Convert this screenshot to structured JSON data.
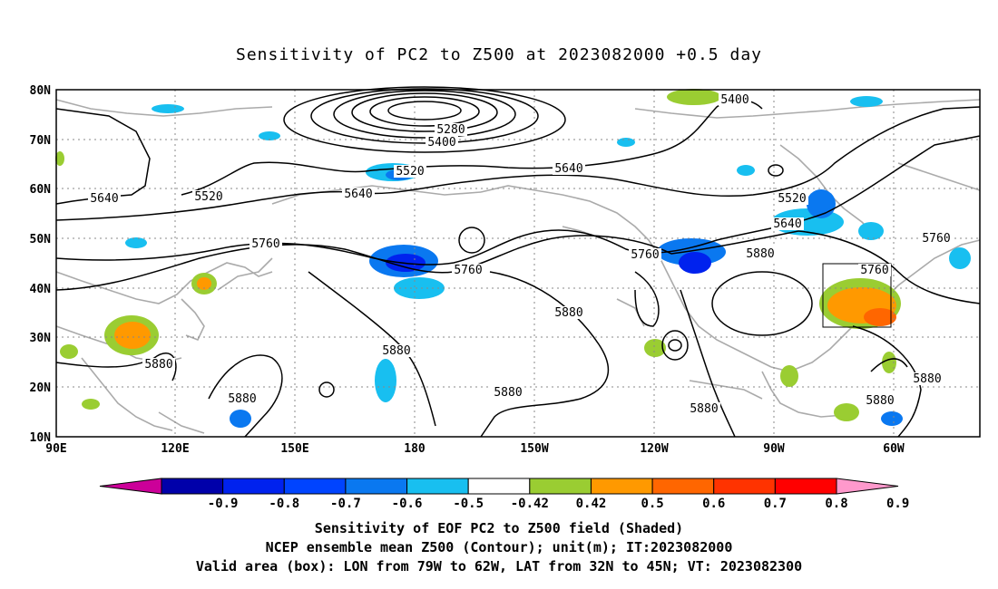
{
  "title": "Sensitivity of PC2 to Z500 at 2023082000 +0.5 day",
  "map": {
    "lat_labels": [
      "80N",
      "70N",
      "60N",
      "50N",
      "40N",
      "30N",
      "20N",
      "10N"
    ],
    "lon_labels": [
      "90E",
      "120E",
      "150E",
      "180",
      "150W",
      "120W",
      "90W",
      "60W"
    ],
    "contour_labels": [
      "5400",
      "5280",
      "5400",
      "5520",
      "5640",
      "5520",
      "5640",
      "5640",
      "5520",
      "5640",
      "5760",
      "5760",
      "5760",
      "5880",
      "5760",
      "5760",
      "5880",
      "5880",
      "5880",
      "5880",
      "5880",
      "5880",
      "5880",
      "5880"
    ],
    "valid_box": {
      "lon_from": "79W",
      "lon_to": "62W",
      "lat_from": "32N",
      "lat_to": "45N"
    }
  },
  "colorbar": {
    "colors": [
      "#cc0099",
      "#0000aa",
      "#0022ee",
      "#0044ff",
      "#0a78f0",
      "#18bff0",
      "#ffffff",
      "#9acd32",
      "#ff9900",
      "#ff6600",
      "#ff3300",
      "#ff0000",
      "#ff99cc"
    ],
    "labels": [
      "-0.9",
      "-0.8",
      "-0.7",
      "-0.6",
      "-0.5",
      "-0.42",
      "0.42",
      "0.5",
      "0.6",
      "0.7",
      "0.8",
      "0.9"
    ]
  },
  "captions": {
    "line1": "Sensitivity of EOF PC2 to Z500 field (Shaded)",
    "line2": "NCEP ensemble mean Z500 (Contour); unit(m); IT:2023082000",
    "line3": "Valid area (box): LON from 79W to 62W, LAT from 32N to 45N; VT: 2023082300"
  }
}
